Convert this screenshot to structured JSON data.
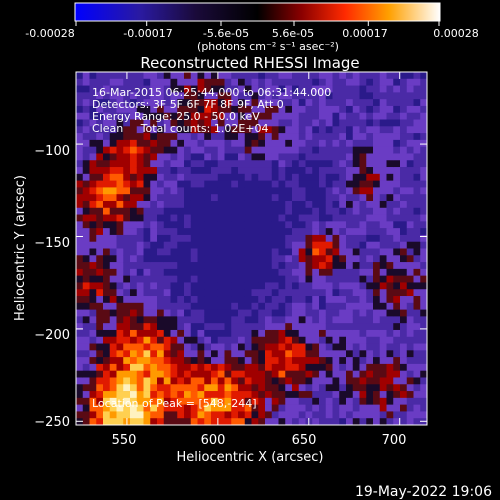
{
  "colorbar": {
    "tick_labels": [
      "-0.00028",
      "-0.00017",
      "-5.6e-05",
      "5.6e-05",
      "0.00017",
      "0.00028"
    ],
    "tick_values": [
      -0.00028,
      -0.00017,
      -5.6e-05,
      5.6e-05,
      0.00017,
      0.00028
    ],
    "range": [
      -0.00028,
      0.00028
    ],
    "units_label": "(photons cm⁻² s⁻¹ asec⁻²)"
  },
  "chart_data": {
    "type": "heatmap",
    "title": "Reconstructed RHESSI Image",
    "xlabel": "Heliocentric X (arcsec)",
    "ylabel": "Heliocentric Y (arcsec)",
    "xlim": [
      522,
      715
    ],
    "ylim": [
      -252,
      -61
    ],
    "x_ticks": [
      550,
      600,
      650,
      700
    ],
    "y_ticks": [
      -100,
      -150,
      -200,
      -250
    ],
    "x_tick_labels": [
      "550",
      "600",
      "650",
      "700"
    ],
    "y_tick_labels": [
      "−100",
      "−150",
      "−200",
      "−250"
    ],
    "colormap": [
      "#0000ff",
      "#2a006e",
      "#3a1a7a",
      "#5a3fb4",
      "#7a47d0",
      "#000000",
      "#5a0a0a",
      "#b20000",
      "#ff4000",
      "#ff9a00",
      "#ffe080",
      "#ffffff"
    ],
    "annotations": [
      "16-Mar-2015 06:25:44.000 to 06:31:44.000",
      "Detectors: 3F 5F 6F 7F 8F 9F, Att 0",
      "Energy Range: 25.0 - 50.0 keV",
      "Clean     Total counts: 1.02E+04"
    ],
    "peak_label": "Location of Peak = [548,-244]",
    "peak_location": [
      548,
      -244
    ]
  },
  "footer": {
    "timestamp": "19-May-2022 19:06"
  }
}
